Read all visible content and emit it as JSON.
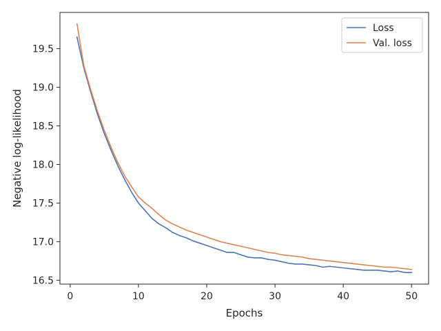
{
  "chart_data": {
    "type": "line",
    "title": "",
    "xlabel": "Epochs",
    "ylabel": "Negative log-likelihood",
    "xlim": [
      -1.5,
      52.5
    ],
    "ylim": [
      16.45,
      19.97
    ],
    "x_ticks": [
      0,
      10,
      20,
      30,
      40,
      50
    ],
    "x_tick_labels": [
      "0",
      "10",
      "20",
      "30",
      "40",
      "50"
    ],
    "y_ticks": [
      16.5,
      17.0,
      17.5,
      18.0,
      18.5,
      19.0,
      19.5
    ],
    "y_tick_labels": [
      "16.5",
      "17.0",
      "17.5",
      "18.0",
      "18.5",
      "19.0",
      "19.5"
    ],
    "grid": false,
    "legend_position": "top-right",
    "x": [
      1,
      2,
      3,
      4,
      5,
      6,
      7,
      8,
      9,
      10,
      11,
      12,
      13,
      14,
      15,
      16,
      17,
      18,
      19,
      20,
      21,
      22,
      23,
      24,
      25,
      26,
      27,
      28,
      29,
      30,
      31,
      32,
      33,
      34,
      35,
      36,
      37,
      38,
      39,
      40,
      41,
      42,
      43,
      44,
      45,
      46,
      47,
      48,
      49,
      50
    ],
    "series": [
      {
        "name": "Loss",
        "color": "#4c72b0",
        "values": [
          19.65,
          19.25,
          18.94,
          18.65,
          18.4,
          18.18,
          17.98,
          17.8,
          17.64,
          17.5,
          17.4,
          17.3,
          17.23,
          17.18,
          17.12,
          17.08,
          17.05,
          17.01,
          16.98,
          16.95,
          16.92,
          16.89,
          16.86,
          16.86,
          16.83,
          16.8,
          16.79,
          16.79,
          16.77,
          16.76,
          16.74,
          16.72,
          16.71,
          16.71,
          16.7,
          16.69,
          16.67,
          16.68,
          16.67,
          16.66,
          16.65,
          16.64,
          16.63,
          16.63,
          16.63,
          16.62,
          16.61,
          16.62,
          16.6,
          16.6
        ]
      },
      {
        "name": "Val. loss",
        "color": "#dd8452",
        "values": [
          19.82,
          19.28,
          18.97,
          18.69,
          18.44,
          18.22,
          18.02,
          17.85,
          17.71,
          17.58,
          17.5,
          17.43,
          17.35,
          17.28,
          17.23,
          17.19,
          17.15,
          17.12,
          17.09,
          17.06,
          17.03,
          17.0,
          16.98,
          16.96,
          16.94,
          16.92,
          16.9,
          16.88,
          16.86,
          16.85,
          16.83,
          16.82,
          16.81,
          16.8,
          16.78,
          16.77,
          16.76,
          16.75,
          16.74,
          16.73,
          16.72,
          16.71,
          16.7,
          16.69,
          16.68,
          16.67,
          16.67,
          16.66,
          16.65,
          16.64
        ]
      }
    ]
  }
}
